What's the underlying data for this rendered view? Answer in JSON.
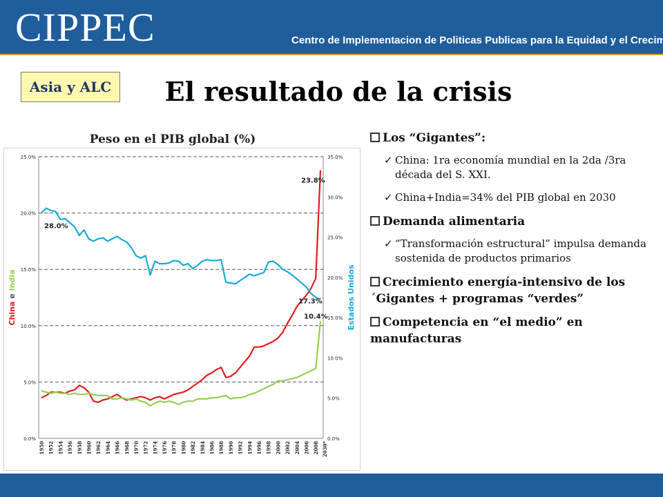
{
  "header": {
    "logo_text": "CIPPEC",
    "subtitle": "Centro de Implementacion de Politicas Publicas para la Equidad y el Crecimiento",
    "background_color": "#1f5d9b",
    "accent_color": "#d9a128"
  },
  "slide": {
    "tag": "Asia y ALC",
    "title": "El resultado de la crisis"
  },
  "bullets": [
    {
      "text": "Los “Gigantes”:",
      "sub": [
        "China: 1ra economía mundial en la 2da /3ra década del S. XXI.",
        "China+India=34% del PIB global en 2030"
      ]
    },
    {
      "text": "Demanda alimentaria",
      "sub": [
        "“Transformación estructural” impulsa demanda sostenida de productos primarios"
      ]
    },
    {
      "text": "Crecimiento energía-intensivo de los ´Gigantes + programas “verdes”",
      "sub": []
    },
    {
      "text": "Competencia en “el medio” en manufacturas",
      "sub": []
    }
  ],
  "chart_data": {
    "type": "line",
    "title": "Peso en el PIB global (%)",
    "left_axis_label_parts": [
      "China",
      " e ",
      "India"
    ],
    "right_axis_label": "Estados Unidos",
    "left_ylim": [
      0,
      25
    ],
    "right_ylim": [
      0,
      35
    ],
    "left_ticks": [
      "0.0%",
      "5.0%",
      "10.0%",
      "15.0%",
      "20.0%",
      "25.0%"
    ],
    "right_ticks": [
      "0.0%",
      "5.0%",
      "10.0%",
      "15.0%",
      "20.0%",
      "25.0%",
      "30.0%",
      "35.0%"
    ],
    "x_tick_labels": [
      "1950",
      "1952",
      "1954",
      "1956",
      "1958",
      "1960",
      "1962",
      "1964",
      "1966",
      "1968",
      "1970",
      "1972",
      "1974",
      "1976",
      "1978",
      "1980",
      "1982",
      "1984",
      "1986",
      "1988",
      "1990",
      "1992",
      "1994",
      "1996",
      "1998",
      "2000",
      "2002",
      "2004",
      "2006",
      "2008",
      "2030*"
    ],
    "x": [
      1950,
      1951,
      1952,
      1953,
      1954,
      1955,
      1956,
      1957,
      1958,
      1959,
      1960,
      1961,
      1962,
      1963,
      1964,
      1965,
      1966,
      1967,
      1968,
      1969,
      1970,
      1971,
      1972,
      1973,
      1974,
      1975,
      1976,
      1977,
      1978,
      1979,
      1980,
      1981,
      1982,
      1983,
      1984,
      1985,
      1986,
      1987,
      1988,
      1989,
      1990,
      1991,
      1992,
      1993,
      1994,
      1995,
      1996,
      1997,
      1998,
      1999,
      2000,
      2001,
      2002,
      2003,
      2004,
      2005,
      2006,
      2007,
      2008,
      2030
    ],
    "series": [
      {
        "name": "China",
        "axis": "left",
        "color": "#e31a1c",
        "values": [
          3.6,
          3.8,
          4.1,
          4.1,
          4.1,
          4.0,
          4.2,
          4.3,
          4.7,
          4.5,
          4.1,
          3.3,
          3.2,
          3.4,
          3.5,
          3.7,
          3.9,
          3.6,
          3.4,
          3.5,
          3.6,
          3.7,
          3.6,
          3.4,
          3.6,
          3.7,
          3.5,
          3.7,
          3.9,
          4.0,
          4.1,
          4.3,
          4.6,
          4.9,
          5.2,
          5.6,
          5.8,
          6.1,
          6.3,
          5.4,
          5.5,
          5.8,
          6.3,
          6.8,
          7.3,
          8.1,
          8.1,
          8.2,
          8.4,
          8.6,
          8.9,
          9.4,
          10.2,
          10.9,
          11.7,
          12.2,
          12.7,
          13.3,
          14.2,
          23.8
        ]
      },
      {
        "name": "India",
        "axis": "left",
        "color": "#92d050",
        "values": [
          4.2,
          4.1,
          4.0,
          4.1,
          4.0,
          4.0,
          3.9,
          4.0,
          3.9,
          3.9,
          4.0,
          3.9,
          3.8,
          3.8,
          3.8,
          3.5,
          3.5,
          3.6,
          3.5,
          3.4,
          3.5,
          3.3,
          3.2,
          2.9,
          3.1,
          3.3,
          3.2,
          3.3,
          3.2,
          3.0,
          3.2,
          3.3,
          3.3,
          3.5,
          3.5,
          3.5,
          3.6,
          3.6,
          3.7,
          3.8,
          3.5,
          3.6,
          3.6,
          3.7,
          3.9,
          4.0,
          4.2,
          4.4,
          4.6,
          4.8,
          5.1,
          5.1,
          5.2,
          5.3,
          5.4,
          5.6,
          5.8,
          6.0,
          6.2,
          10.4
        ]
      },
      {
        "name": "Estados Unidos",
        "axis": "right",
        "color": "#1aa7d8",
        "values": [
          28.0,
          28.6,
          28.3,
          28.2,
          27.2,
          27.3,
          26.8,
          26.3,
          25.2,
          25.9,
          24.8,
          24.5,
          24.8,
          24.9,
          24.5,
          24.8,
          25.1,
          24.7,
          24.4,
          23.7,
          22.7,
          22.4,
          22.7,
          20.3,
          22.0,
          21.7,
          21.7,
          21.8,
          22.1,
          22.0,
          21.5,
          21.7,
          21.1,
          21.5,
          22.0,
          22.2,
          22.1,
          22.1,
          22.2,
          19.4,
          19.3,
          19.2,
          19.6,
          20.0,
          20.4,
          20.2,
          20.4,
          20.6,
          21.9,
          22.0,
          21.6,
          21.0,
          20.7,
          20.3,
          19.8,
          19.3,
          18.8,
          18.0,
          17.5,
          17.3
        ]
      }
    ],
    "annotations": [
      {
        "text": "23.8%",
        "series": "China"
      },
      {
        "text": "28.0%",
        "series": "Estados Unidos"
      },
      {
        "text": "17.3%",
        "series": "Estados Unidos"
      },
      {
        "text": "10.4%",
        "series": "India"
      }
    ]
  }
}
